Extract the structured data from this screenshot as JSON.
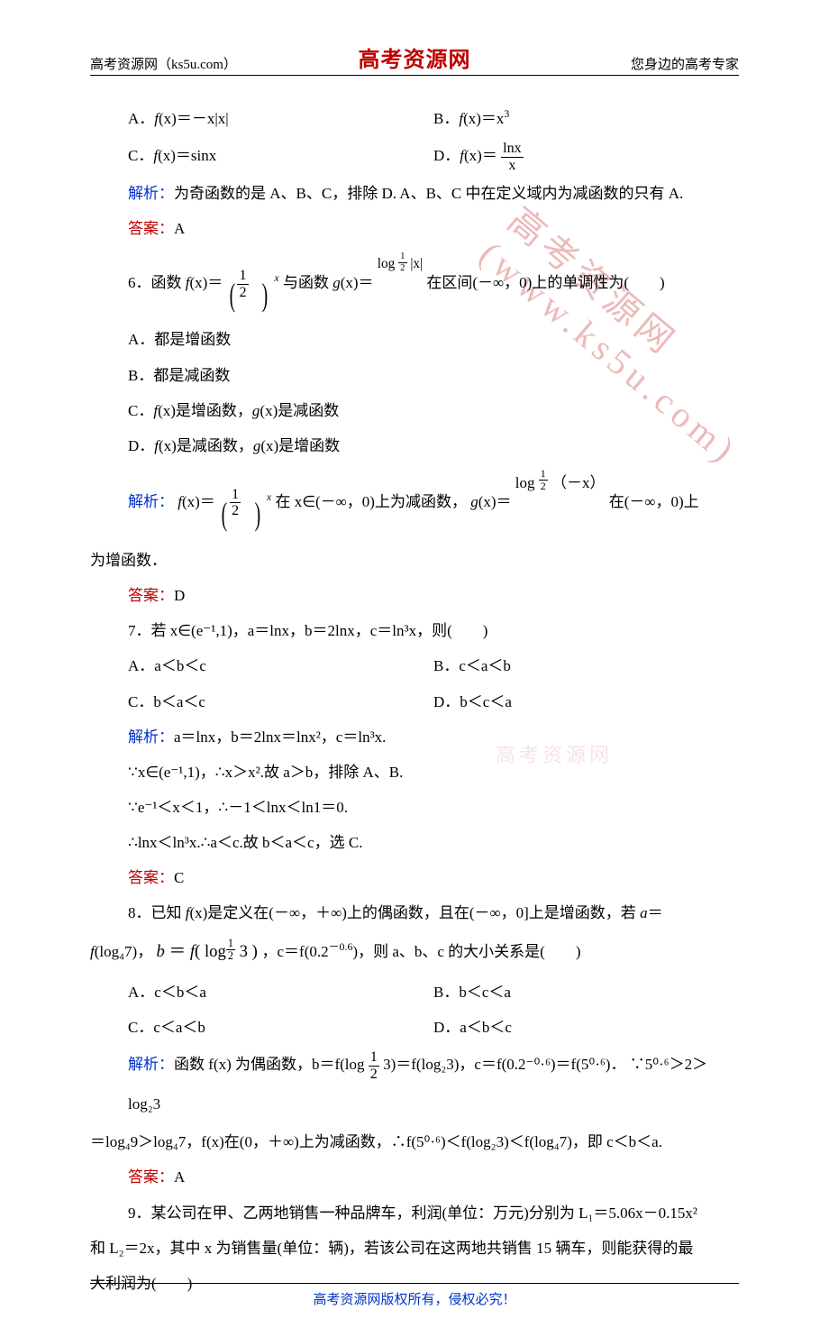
{
  "header": {
    "left": "高考资源网（ks5u.com）",
    "center": "高考资源网",
    "right": "您身边的高考专家"
  },
  "footer": "高考资源网版权所有，侵权必究！",
  "watermark": {
    "main": "高考资源网 (www.ks5u.com)",
    "small": "高考资源网"
  },
  "labels": {
    "analysis": "解析：",
    "answer": "答案："
  },
  "q5": {
    "A": "A．",
    "Aexpr_prefix": "f",
    "Aexpr_body": "(x)＝－x|x|",
    "B": "B．",
    "Bexpr_prefix": "f",
    "Bexpr_body": "(x)＝x",
    "Bexpr_sup": "3",
    "C": "C．",
    "Cexpr_prefix": "f",
    "Cexpr_body": "(x)＝sinx",
    "D": "D．",
    "Dexpr_prefix": "f",
    "Dexpr_body1": "(x)＝",
    "Dfrac_top": "lnx",
    "Dfrac_bot": "x",
    "analysis_text": "为奇函数的是 A、B、C，排除 D. A、B、C 中在定义域内为减函数的只有 A.",
    "answer_val": "A"
  },
  "q6": {
    "stem1": "6．函数 ",
    "stem_f": "f",
    "stem2": "(x)＝",
    "frac1_top": "1",
    "frac1_bot": "2",
    "stem_sup1": "x",
    "stem3": " 与函数 ",
    "stem_g": "g",
    "stem4": "(x)＝",
    "logtxt": "log",
    "log_sub_top": "1",
    "log_sub_bot": "2",
    "log_arg_top": " |x|",
    "stem5": " 在区间(－∞，0)上的单调性为(　　)",
    "A": "A．都是增函数",
    "B": "B．都是减函数",
    "C_pre": "C．",
    "C_txt": "f(x)是增函数，g(x)是减函数",
    "D_pre": "D．",
    "D_txt": "f(x)是减函数，g(x)是增函数",
    "analysis_pre": "f",
    "analysis_1": "(x)＝",
    "analysis_sup": "x",
    "analysis_2": " 在 x∈(－∞，0)上为减函数，",
    "analysis_g": "g",
    "analysis_3": "(x)＝",
    "analysis_log_arg": "（－x）",
    "analysis_4": " 在(－∞，0)上",
    "analysis_tail": "为增函数．",
    "answer_val": "D"
  },
  "q7": {
    "stem": "7．若 x∈(e⁻¹,1)，a＝lnx，b＝2lnx，c＝ln³x，则(　　)",
    "A": "A．a＜b＜c",
    "B": "B．c＜a＜b",
    "C": "C．b＜a＜c",
    "D": "D．b＜c＜a",
    "analysis_l1": "a＝lnx，b＝2lnx＝lnx²，c＝ln³x.",
    "analysis_l2": "∵x∈(e⁻¹,1)，∴x＞x².故 a＞b，排除 A、B.",
    "analysis_l3": "∵e⁻¹＜x＜1，∴－1＜lnx＜ln1＝0.",
    "analysis_l4": "∴lnx＜ln³x.∴a＜c.故 b＜a＜c，选 C.",
    "answer_val": "C"
  },
  "q8": {
    "stem_l1": "8．已知 f(x)是定义在(－∞，＋∞)上的偶函数，且在(－∞，0]上是增函数，若 a＝",
    "stem_l2_pre": "f(log₄7)，",
    "stem_l2_b_prefix": "b ＝ f ( ",
    "stem_l2_b_log": "log",
    "stem_l2_b_sub_top": "1",
    "stem_l2_b_sub_bot": "2",
    "stem_l2_b_arg": "3 )",
    "stem_l2_mid": "，c＝f(0.2",
    "stem_l2_sup": "－0.6",
    "stem_l2_tail": ")，则 a、b、c 的大小关系是(　　)",
    "A": "A．c＜b＜a",
    "B": "B．b＜c＜a",
    "C": "C．c＜a＜b",
    "D": "D．a＜b＜c",
    "analysis_l1_pre": "函数 f(x) 为偶函数，b＝f(log",
    "analysis_frac_top": "1",
    "analysis_frac_bot": "2",
    "analysis_l1_mid": "3)＝f(log₂3)，c＝f(0.2⁻⁰·⁶)＝f(5⁰·⁶)． ∵5⁰·⁶＞2＞log₂3",
    "analysis_l2": "＝log₄9＞log₄7，f(x)在(0，＋∞)上为减函数，∴f(5⁰·⁶)＜f(log₂3)＜f(log₄7)，即 c＜b＜a.",
    "answer_val": "A"
  },
  "q9": {
    "l1": "9．某公司在甲、乙两地销售一种品牌车，利润(单位：万元)分别为 L₁＝5.06x－0.15x²",
    "l2": "和 L₂＝2x，其中 x 为销售量(单位：辆)，若该公司在这两地共销售 15 辆车，则能获得的最",
    "l3": "大利润为(　　)"
  }
}
